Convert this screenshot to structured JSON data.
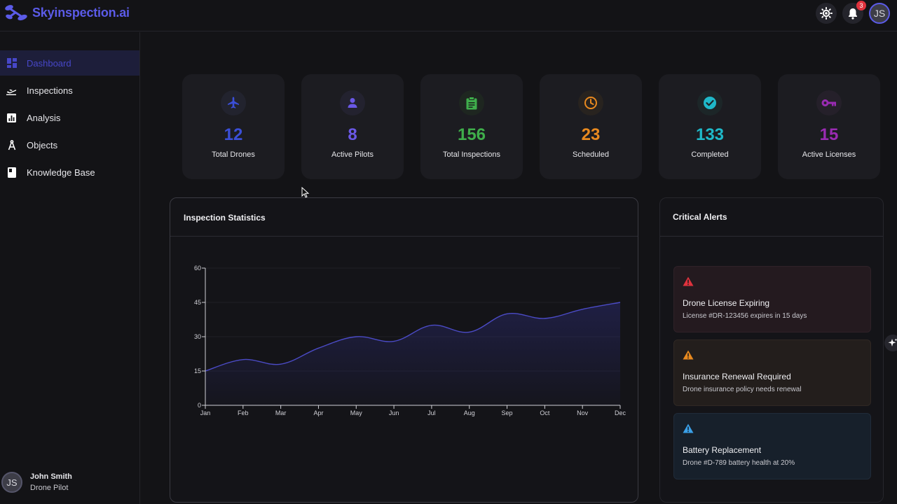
{
  "app": {
    "name": "Skyinspection.ai",
    "notification_count": "3",
    "user_initials": "JS"
  },
  "sidebar": {
    "items": [
      {
        "label": "Dashboard",
        "icon": "dashboard-icon",
        "active": true
      },
      {
        "label": "Inspections",
        "icon": "plane-takeoff-icon",
        "active": false
      },
      {
        "label": "Analysis",
        "icon": "chart-icon",
        "active": false
      },
      {
        "label": "Objects",
        "icon": "compass-icon",
        "active": false
      },
      {
        "label": "Knowledge Base",
        "icon": "book-icon",
        "active": false
      }
    ],
    "profile": {
      "initials": "JS",
      "name": "John Smith",
      "role": "Drone Pilot"
    }
  },
  "stats": [
    {
      "value": "12",
      "label": "Total Drones",
      "icon": "airplane-icon",
      "color": "#3b4fd8"
    },
    {
      "value": "8",
      "label": "Active Pilots",
      "icon": "person-icon",
      "color": "#6a58e6"
    },
    {
      "value": "156",
      "label": "Total Inspections",
      "icon": "clipboard-icon",
      "color": "#3fae4b"
    },
    {
      "value": "23",
      "label": "Scheduled",
      "icon": "clock-icon",
      "color": "#e8891f"
    },
    {
      "value": "133",
      "label": "Completed",
      "icon": "check-circle-icon",
      "color": "#1fb8c9"
    },
    {
      "value": "15",
      "label": "Active Licenses",
      "icon": "key-icon",
      "color": "#9a2bb3"
    }
  ],
  "chart_panel": {
    "title": "Inspection Statistics"
  },
  "chart_data": {
    "type": "area",
    "categories": [
      "Jan",
      "Feb",
      "Mar",
      "Apr",
      "May",
      "Jun",
      "Jul",
      "Aug",
      "Sep",
      "Oct",
      "Nov",
      "Dec"
    ],
    "values": [
      15,
      20,
      18,
      25,
      30,
      28,
      35,
      32,
      40,
      38,
      42,
      45
    ],
    "yticks": [
      0,
      15,
      30,
      45,
      60
    ],
    "ylim": [
      0,
      60
    ],
    "grid": true,
    "color": "#4b4bc6"
  },
  "alerts_panel": {
    "title": "Critical Alerts",
    "alerts": [
      {
        "title": "Drone License Expiring",
        "text": "License #DR-123456 expires in 15 days",
        "icon": "warning-icon",
        "color": "#e0323d",
        "bg": "#241a1f",
        "border": "#2f2228"
      },
      {
        "title": "Insurance Renewal Required",
        "text": "Drone insurance policy needs renewal",
        "icon": "warning-icon",
        "color": "#e8891f",
        "bg": "#231e1c",
        "border": "#302824"
      },
      {
        "title": "Battery Replacement",
        "text": "Drone #D-789 battery health at 20%",
        "icon": "warning-icon",
        "color": "#3aa0e8",
        "bg": "#17202b",
        "border": "#202c3a"
      }
    ]
  }
}
